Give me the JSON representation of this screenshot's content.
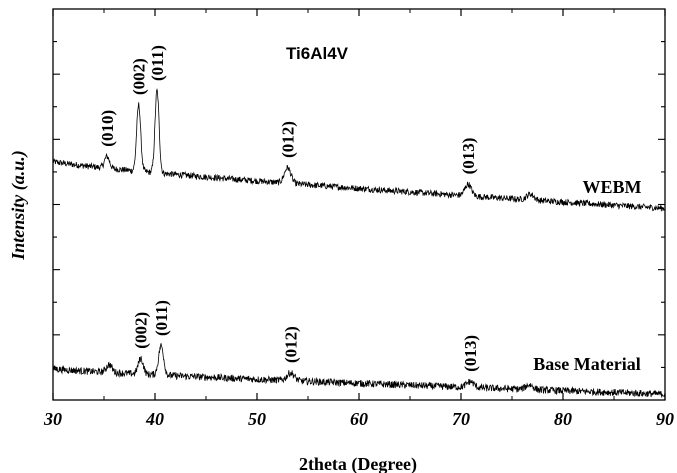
{
  "chart_data": {
    "type": "line",
    "title": "Ti6Al4V",
    "xlabel": "2theta (Degree)",
    "ylabel": "Intensity (a.u.)",
    "xlim": [
      30,
      90
    ],
    "ylim": [
      0,
      1
    ],
    "x_ticks": [
      "30",
      "40",
      "50",
      "60",
      "70",
      "80",
      "90"
    ],
    "y_tick_labels_shown": false,
    "grid": false,
    "series": [
      {
        "name": "WEBM",
        "baseline": [
          0.61,
          0.49
        ],
        "peaks": [
          {
            "label": "(010)",
            "x": 35.3,
            "height": 0.03,
            "width": 0.35
          },
          {
            "label": "(002)",
            "x": 38.4,
            "height": 0.17,
            "width": 0.28
          },
          {
            "label": "(011)",
            "x": 40.2,
            "height": 0.21,
            "width": 0.28
          },
          {
            "label": "(012)",
            "x": 53.0,
            "height": 0.04,
            "width": 0.45
          },
          {
            "label": "(013)",
            "x": 70.7,
            "height": 0.03,
            "width": 0.45
          },
          {
            "label": "",
            "x": 76.8,
            "height": 0.015,
            "width": 0.5
          }
        ],
        "noise": 0.008
      },
      {
        "name": "Base Material",
        "baseline": [
          0.08,
          0.015
        ],
        "peaks": [
          {
            "label": "",
            "x": 35.5,
            "height": 0.02,
            "width": 0.4
          },
          {
            "label": "(002)",
            "x": 38.6,
            "height": 0.04,
            "width": 0.35
          },
          {
            "label": "(011)",
            "x": 40.6,
            "height": 0.075,
            "width": 0.35
          },
          {
            "label": "(012)",
            "x": 53.3,
            "height": 0.02,
            "width": 0.5
          },
          {
            "label": "(013)",
            "x": 70.9,
            "height": 0.015,
            "width": 0.5
          },
          {
            "label": "",
            "x": 76.7,
            "height": 0.012,
            "width": 0.5
          }
        ],
        "noise": 0.009
      }
    ]
  }
}
